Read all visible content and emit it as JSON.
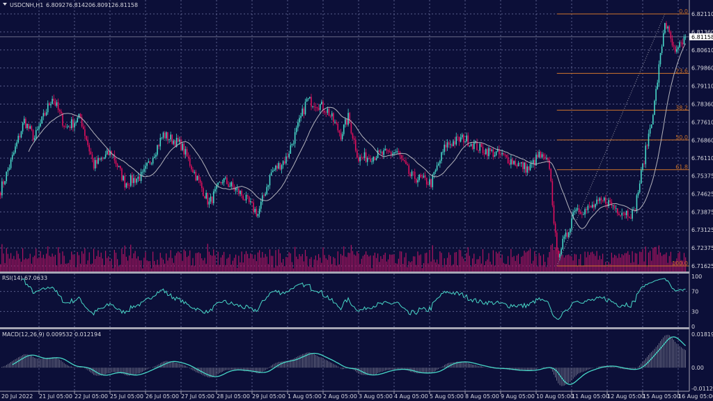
{
  "header": {
    "symbol": "USDCNH,H1",
    "open": "6.80927",
    "high": "6.81420",
    "low": "6.80912",
    "close": "6.81158"
  },
  "colors": {
    "background": "#0c0f38",
    "bull": "#48d8c8",
    "bear": "#e0105c",
    "volume": "#b01462",
    "ma": "#b4b4bc",
    "fibonacci": "#d0762c",
    "grid": "#5a5f8c",
    "macd_histogram": "#c8c8d0",
    "signal": "#48d8c8",
    "rsi": "#48d8c8"
  },
  "chart_data": [
    {
      "type": "candlestick",
      "name": "price",
      "timeframe": "H1",
      "ylim": [
        6.71625,
        6.8211
      ],
      "price_ticks": [
        "6.82110",
        "6.81360",
        "6.80610",
        "6.79860",
        "6.79110",
        "6.78360",
        "6.77610",
        "6.76860",
        "6.76110",
        "6.75375",
        "6.74625",
        "6.73875",
        "6.73125",
        "6.72375",
        "6.71625"
      ],
      "current_price": "6.81158",
      "time_ticks": [
        "20 Jul 2022",
        "21 Jul 05:00",
        "22 Jul 05:00",
        "25 Jul 05:00",
        "26 Jul 05:00",
        "27 Jul 05:00",
        "28 Jul 05:00",
        "29 Jul 05:00",
        "1 Aug 05:00",
        "2 Aug 05:00",
        "3 Aug 05:00",
        "4 Aug 05:00",
        "5 Aug 05:00",
        "8 Aug 05:00",
        "9 Aug 05:00",
        "10 Aug 05:00",
        "11 Aug 05:00",
        "12 Aug 05:00",
        "15 Aug 05:00",
        "16 Aug 05:00"
      ],
      "close_path": [
        [
          "20 Jul 03:00",
          6.7479
        ],
        [
          "20 Jul 10:00",
          6.7594
        ],
        [
          "20 Jul 19:00",
          6.7766
        ],
        [
          "21 Jul 02:00",
          6.7694
        ],
        [
          "21 Jul 14:00",
          6.7867
        ],
        [
          "21 Jul 23:00",
          6.7737
        ],
        [
          "22 Jul 09:00",
          6.778
        ],
        [
          "22 Jul 18:00",
          6.758
        ],
        [
          "25 Jul 06:00",
          6.7637
        ],
        [
          "25 Jul 15:00",
          6.7508
        ],
        [
          "26 Jul 03:00",
          6.7537
        ],
        [
          "26 Jul 17:00",
          6.7709
        ],
        [
          "27 Jul 05:00",
          6.7666
        ],
        [
          "27 Jul 14:00",
          6.7551
        ],
        [
          "28 Jul 00:00",
          6.7422
        ],
        [
          "28 Jul 09:00",
          6.7522
        ],
        [
          "28 Jul 21:00",
          6.7465
        ],
        [
          "29 Jul 09:00",
          6.7379
        ],
        [
          "29 Jul 18:00",
          6.7551
        ],
        [
          "1 Aug 04:00",
          6.7608
        ],
        [
          "1 Aug 11:00",
          6.7723
        ],
        [
          "1 Aug 18:00",
          6.7852
        ],
        [
          "2 Aug 01:00",
          6.7838
        ],
        [
          "2 Aug 08:00",
          6.7809
        ],
        [
          "2 Aug 17:00",
          6.7709
        ],
        [
          "2 Aug 22:00",
          6.778
        ],
        [
          "3 Aug 05:00",
          6.7608
        ],
        [
          "3 Aug 17:00",
          6.7623
        ],
        [
          "4 Aug 07:00",
          6.7637
        ],
        [
          "4 Aug 16:00",
          6.7537
        ],
        [
          "5 Aug 06:00",
          6.7508
        ],
        [
          "5 Aug 16:00",
          6.7666
        ],
        [
          "8 Aug 04:00",
          6.7694
        ],
        [
          "8 Aug 15:00",
          6.7651
        ],
        [
          "9 Aug 05:00",
          6.7623
        ],
        [
          "10 Aug 00:00",
          6.7565
        ],
        [
          "10 Aug 07:00",
          6.7623
        ],
        [
          "10 Aug 14:00",
          6.758
        ],
        [
          "10 Aug 19:00",
          6.7206
        ],
        [
          "11 Aug 02:00",
          6.7293
        ],
        [
          "11 Aug 07:00",
          6.7407
        ],
        [
          "11 Aug 14:00",
          6.7393
        ],
        [
          "12 Aug 04:00",
          6.7436
        ],
        [
          "12 Aug 13:00",
          6.7393
        ],
        [
          "12 Aug 23:00",
          6.7379
        ],
        [
          "15 Aug 06:00",
          6.7608
        ],
        [
          "15 Aug 13:00",
          6.7838
        ],
        [
          "15 Aug 20:00",
          6.8182
        ],
        [
          "16 Aug 03:00",
          6.8039
        ],
        [
          "16 Aug 10:00",
          6.81158
        ]
      ],
      "moving_average": {
        "type": "SMA",
        "period": 20
      },
      "fibonacci": {
        "from": [
          "10 Aug 19:00",
          6.71625
        ],
        "to": [
          "15 Aug 20:00",
          6.8211
        ],
        "levels": [
          {
            "label": "0.0",
            "price": 6.8211
          },
          {
            "label": "23.6",
            "price": 6.79636
          },
          {
            "label": "38.2",
            "price": 6.78105
          },
          {
            "label": "50.0",
            "price": 6.76868
          },
          {
            "label": "61.8",
            "price": 6.7563
          },
          {
            "label": "100.0",
            "price": 6.71625
          }
        ]
      }
    },
    {
      "type": "line",
      "name": "RSI(14)",
      "label": "RSI(14) 67.0633",
      "ylim": [
        0,
        100
      ],
      "levels": [
        "100",
        "70",
        "30",
        "0"
      ]
    },
    {
      "type": "bar",
      "name": "MACD(12,26,9)",
      "label": "MACD(12,26,9) 0.009532 0.012194",
      "ylim": [
        -0.011298,
        0.018194
      ],
      "ticks": [
        "0.018194",
        "0.00",
        "-0.011298"
      ]
    }
  ]
}
